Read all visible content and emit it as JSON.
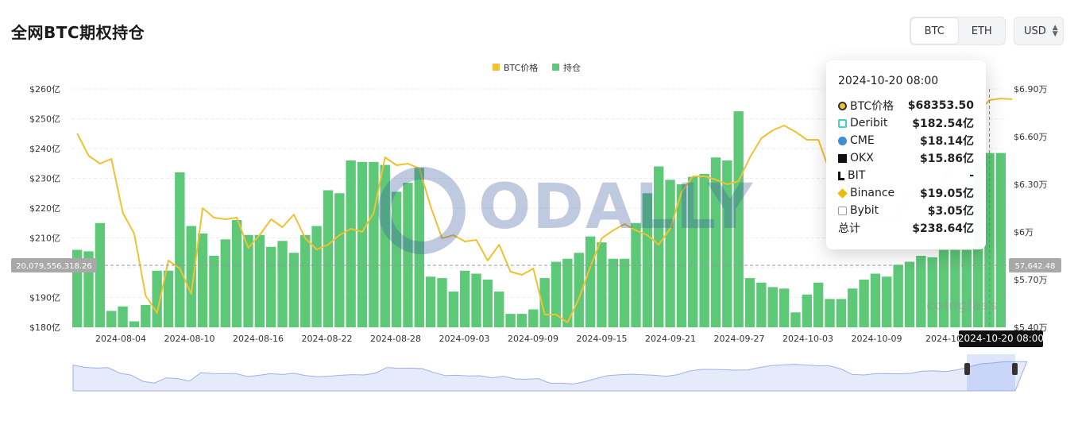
{
  "header": {
    "title": "全网BTC期权持仓",
    "seg_btc": "BTC",
    "seg_eth": "ETH",
    "currency": "USD"
  },
  "watermark": "ODALLY",
  "corner_watermark": "coinglass",
  "colors": {
    "bar": "#5cc878",
    "line": "#f2c131",
    "active_date_bg": "#111111"
  },
  "tooltip": {
    "date": "2024-10-20 08:00",
    "rows": [
      {
        "name": "BTC价格",
        "value": "$68353.50",
        "icon": "circle-gold-icon"
      },
      {
        "name": "Deribit",
        "value": "$182.54亿",
        "icon": "deribit-icon"
      },
      {
        "name": "CME",
        "value": "$18.14亿",
        "icon": "cme-icon"
      },
      {
        "name": "OKX",
        "value": "$15.86亿",
        "icon": "okx-icon"
      },
      {
        "name": "BIT",
        "value": "-",
        "icon": "bit-icon"
      },
      {
        "name": "Binance",
        "value": "$19.05亿",
        "icon": "binance-icon"
      },
      {
        "name": "Bybit",
        "value": "$3.05亿",
        "icon": "bybit-icon"
      }
    ],
    "total_label": "总计",
    "total_value": "$238.64亿"
  },
  "crosshair": {
    "left_value": "20,079,556,318.26",
    "right_value": "57,642.48",
    "date_label": "2024-10-20 08:00"
  },
  "chart_data": {
    "type": "bar",
    "legend": [
      "BTC价格",
      "持仓"
    ],
    "legend_placement": "top-center",
    "y_left_ticks": [
      "$180亿",
      "$190亿",
      "$200亿",
      "$210亿",
      "$220亿",
      "$230亿",
      "$240亿",
      "$250亿",
      "$260亿"
    ],
    "y_left_range": [
      180,
      260
    ],
    "y_right_ticks": [
      "$5.40万",
      "$5.70万",
      "$6万",
      "$6.30万",
      "$6.60万",
      "$6.90万"
    ],
    "y_right_range": [
      54000,
      69000
    ],
    "x_ticks": [
      "2024-08-04",
      "2024-08-10",
      "2024-08-16",
      "2024-08-22",
      "2024-08-28",
      "2024-09-03",
      "2024-09-09",
      "2024-09-15",
      "2024-09-21",
      "2024-09-27",
      "2024-10-03",
      "2024-10-09",
      "2024-10-"
    ],
    "grid": true,
    "series": [
      {
        "name": "持仓",
        "unit": "亿USD",
        "values": [
          206,
          205.5,
          215,
          185.5,
          187,
          182,
          187.5,
          199,
          199,
          232,
          214,
          211.5,
          204,
          209.5,
          216,
          211,
          211,
          207,
          209,
          205,
          211,
          214,
          226,
          225,
          236,
          235.5,
          235.5,
          234.5,
          225.5,
          228.5,
          233.5,
          197,
          196.5,
          192,
          199,
          198,
          196,
          192,
          184.5,
          184.5,
          186,
          196.5,
          202,
          203,
          205,
          210.5,
          208.5,
          203,
          203,
          215,
          225,
          234,
          229.5,
          228,
          230.5,
          231.5,
          237,
          236,
          252.5,
          196.5,
          195,
          193.5,
          193,
          185,
          191,
          195,
          189.5,
          189.5,
          193,
          196,
          198,
          197,
          201,
          202,
          204,
          203.5,
          206,
          206,
          206,
          235,
          238.5,
          238.5
        ]
      },
      {
        "name": "BTC价格",
        "unit": "USD",
        "values": [
          66200,
          64800,
          64300,
          64600,
          61200,
          59900,
          56000,
          54900,
          58200,
          57700,
          56100,
          61500,
          60900,
          60800,
          60900,
          59000,
          59800,
          60800,
          60300,
          61100,
          59600,
          58900,
          59200,
          59800,
          60200,
          60000,
          61200,
          64700,
          64200,
          64300,
          64000,
          61600,
          59600,
          59800,
          59400,
          59500,
          58200,
          59200,
          57500,
          57300,
          57700,
          54800,
          54800,
          54300,
          55800,
          57800,
          59600,
          60100,
          60500,
          60100,
          59800,
          59200,
          60200,
          62500,
          63500,
          63500,
          63300,
          63000,
          63200,
          64700,
          65900,
          66400,
          66700,
          66300,
          65800,
          65800,
          63800,
          60300,
          60000,
          60800,
          60900,
          60700,
          61000,
          62400,
          62600,
          62100,
          63200,
          65000,
          67000,
          67500,
          68300,
          68400,
          68353.5
        ]
      }
    ],
    "navigator_range": [
      "2024-10-1x",
      "2024-10-20"
    ]
  }
}
